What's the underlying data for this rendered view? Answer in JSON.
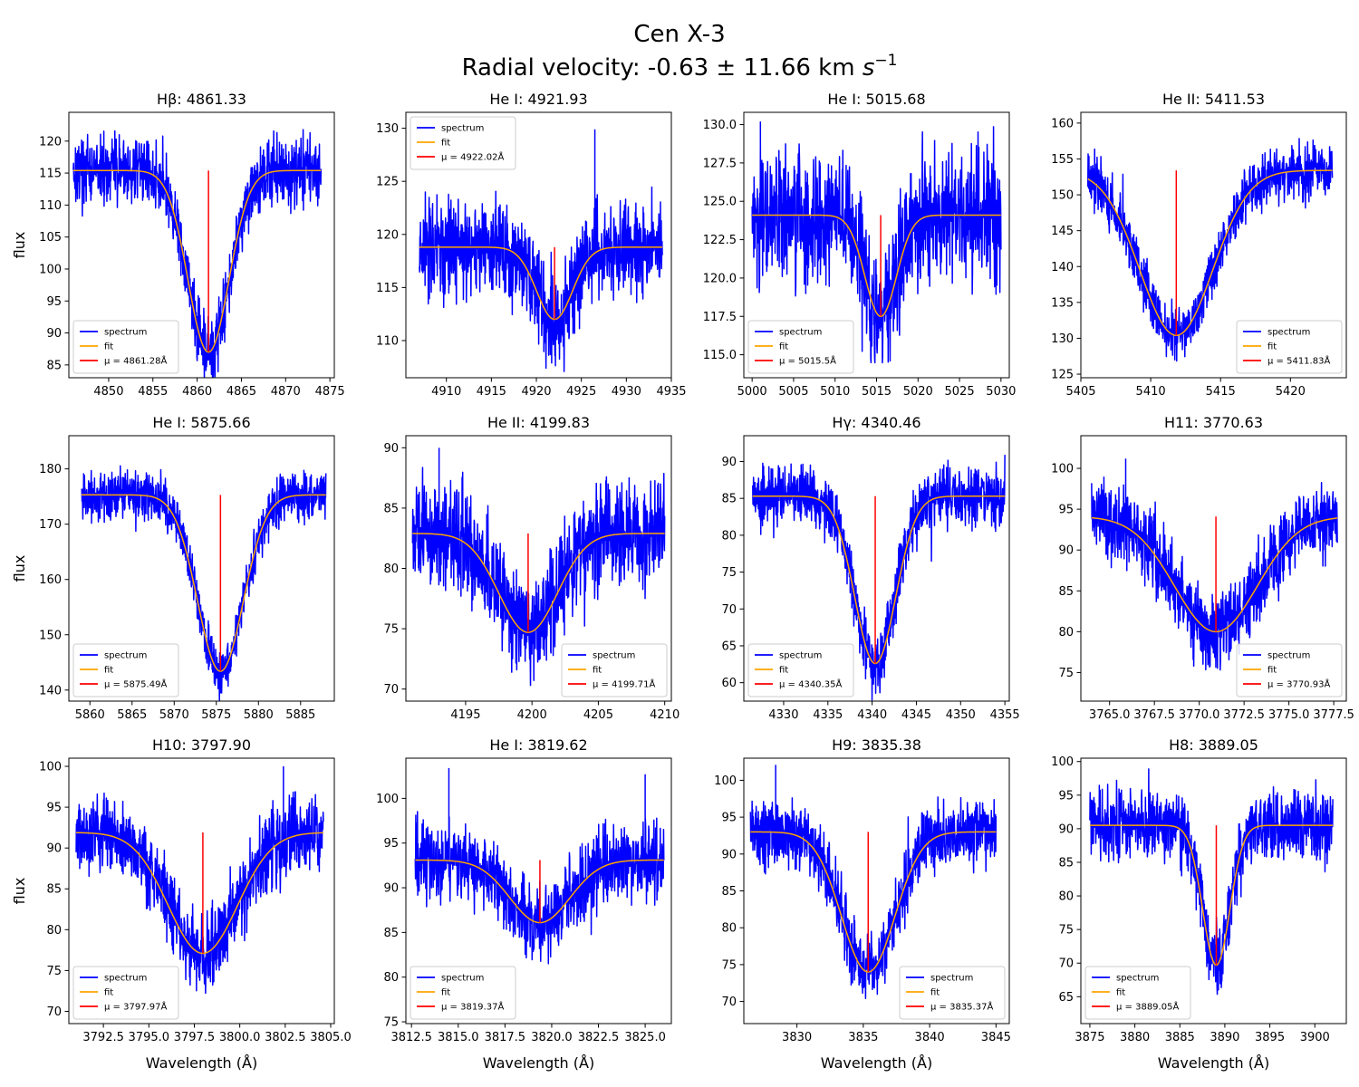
{
  "figure": {
    "title_line1": "Cen X-3",
    "title_line2_prefix": "Radial velocity: -0.63 ± 11.66 km ",
    "title_line2_unit": "s",
    "title_line2_exp": "−1"
  },
  "legend_labels": {
    "spectrum": "spectrum",
    "fit": "fit"
  },
  "colors": {
    "spectrum": "#0000ff",
    "fit": "#ffa500",
    "mu": "#ff0000"
  },
  "axis_labels": {
    "ylabel": "flux",
    "xlabel": "Wavelength (Å)"
  },
  "chart_data": [
    {
      "type": "line",
      "title": "Hβ: 4861.33",
      "mu_label": "μ = 4861.28Å",
      "xlim": [
        4845.5,
        4875.5
      ],
      "ylim": [
        83,
        124.5
      ],
      "xticks": [
        4845,
        4850,
        4855,
        4860,
        4865,
        4870,
        4875
      ],
      "yticks": [
        85,
        90,
        95,
        100,
        105,
        110,
        115,
        120
      ],
      "data_x": [
        4846,
        4874
      ],
      "fit": {
        "base": 115.4,
        "depth": 28.4,
        "mu": 4861.28,
        "sigma": 2.3
      },
      "mu_line": [
        87.0,
        115.4
      ],
      "noise": 2.6,
      "spikes": [],
      "legend": "lower-left"
    },
    {
      "type": "line",
      "title": "He I: 4921.93",
      "mu_label": "μ = 4922.02Å",
      "xlim": [
        4905.5,
        4935
      ],
      "ylim": [
        106.5,
        131.5
      ],
      "xticks": [
        4910,
        4915,
        4920,
        4925,
        4930,
        4935
      ],
      "yticks": [
        110,
        115,
        120,
        125,
        130
      ],
      "data_x": [
        4907,
        4934
      ],
      "fit": {
        "base": 118.8,
        "depth": 6.8,
        "mu": 4922.02,
        "sigma": 2.0
      },
      "mu_line": [
        112.0,
        118.8
      ],
      "noise": 2.2,
      "spikes": [
        [
          4926.5,
          129.9
        ]
      ],
      "legend": "upper-left"
    },
    {
      "type": "line",
      "title": "He I: 5015.68",
      "mu_label": "μ = 5015.5Å",
      "xlim": [
        4999,
        5031
      ],
      "ylim": [
        113.5,
        130.8
      ],
      "xticks": [
        5000,
        5005,
        5010,
        5015,
        5020,
        5025,
        5030
      ],
      "yticks": [
        115.0,
        117.5,
        120.0,
        122.5,
        125.0,
        127.5,
        130.0
      ],
      "data_x": [
        5000,
        5030
      ],
      "fit": {
        "base": 124.1,
        "depth": 6.6,
        "mu": 5015.5,
        "sigma": 1.9
      },
      "mu_line": [
        117.5,
        124.1
      ],
      "noise": 2.1,
      "spikes": [
        [
          5001.0,
          130.2
        ]
      ],
      "legend": "lower-left"
    },
    {
      "type": "line",
      "title": "He II: 5411.53",
      "mu_label": "μ = 5411.83Å",
      "xlim": [
        5405,
        5424
      ],
      "ylim": [
        124.5,
        161.5
      ],
      "xticks": [
        5405,
        5410,
        5415,
        5420
      ],
      "yticks": [
        125,
        130,
        135,
        140,
        145,
        150,
        155,
        160
      ],
      "data_x": [
        5405.5,
        5423
      ],
      "fit": {
        "base": 153.4,
        "depth": 23.0,
        "mu": 5411.83,
        "sigma": 2.6
      },
      "mu_line": [
        130.4,
        153.4
      ],
      "noise": 1.8,
      "spikes": [],
      "legend": "lower-right"
    },
    {
      "type": "line",
      "title": "He I: 5875.66",
      "mu_label": "μ = 5875.49Å",
      "xlim": [
        5857.5,
        5889
      ],
      "ylim": [
        138,
        186
      ],
      "xticks": [
        5860,
        5865,
        5870,
        5875,
        5880,
        5885
      ],
      "yticks": [
        140,
        150,
        160,
        170,
        180
      ],
      "data_x": [
        5859,
        5888
      ],
      "fit": {
        "base": 175.3,
        "depth": 31.9,
        "mu": 5875.49,
        "sigma": 2.7
      },
      "mu_line": [
        143.4,
        175.3
      ],
      "noise": 2.2,
      "spikes": [],
      "legend": "lower-left"
    },
    {
      "type": "line",
      "title": "He II: 4199.83",
      "mu_label": "μ = 4199.71Å",
      "xlim": [
        4190.5,
        4210.5
      ],
      "ylim": [
        69,
        91
      ],
      "xticks": [
        4195,
        4200,
        4205,
        4210
      ],
      "yticks": [
        70,
        75,
        80,
        85,
        90
      ],
      "data_x": [
        4191,
        4210
      ],
      "fit": {
        "base": 82.9,
        "depth": 8.2,
        "mu": 4199.71,
        "sigma": 2.2
      },
      "mu_line": [
        74.7,
        82.9
      ],
      "noise": 2.1,
      "spikes": [
        [
          4193.0,
          90.0
        ]
      ],
      "legend": "lower-right"
    },
    {
      "type": "line",
      "title": "Hγ: 4340.46",
      "mu_label": "μ = 4340.35Å",
      "xlim": [
        4325.5,
        4355.5
      ],
      "ylim": [
        57.5,
        93.5
      ],
      "xticks": [
        4325,
        4330,
        4335,
        4340,
        4345,
        4350,
        4355
      ],
      "yticks": [
        60,
        65,
        70,
        75,
        80,
        85,
        90
      ],
      "data_x": [
        4326.5,
        4355
      ],
      "fit": {
        "base": 85.3,
        "depth": 22.7,
        "mu": 4340.35,
        "sigma": 2.3
      },
      "mu_line": [
        62.6,
        85.3
      ],
      "noise": 2.0,
      "spikes": [],
      "legend": "lower-left"
    },
    {
      "type": "line",
      "title": "H11: 3770.63",
      "mu_label": "μ = 3770.93Å",
      "xlim": [
        3763.4,
        3778.2
      ],
      "ylim": [
        71.5,
        104
      ],
      "xticks": [
        3765.0,
        3767.5,
        3770.0,
        3772.5,
        3775.0,
        3777.5
      ],
      "yticks": [
        75,
        80,
        85,
        90,
        95,
        100
      ],
      "data_x": [
        3764,
        3777.7
      ],
      "fit": {
        "base": 94.1,
        "depth": 14.1,
        "mu": 3770.93,
        "sigma": 2.3
      },
      "mu_line": [
        80.0,
        94.1
      ],
      "noise": 2.3,
      "spikes": [
        [
          3765.9,
          101.2
        ]
      ],
      "legend": "lower-right"
    },
    {
      "type": "line",
      "title": "H10: 3797.90",
      "mu_label": "μ = 3797.97Å",
      "xlim": [
        3790.6,
        3805.2
      ],
      "ylim": [
        68.5,
        101
      ],
      "xticks": [
        3792.5,
        3795.0,
        3797.5,
        3800.0,
        3802.5,
        3805.0
      ],
      "yticks": [
        70,
        75,
        80,
        85,
        90,
        95,
        100
      ],
      "data_x": [
        3791,
        3804.6
      ],
      "fit": {
        "base": 91.9,
        "depth": 14.8,
        "mu": 3797.97,
        "sigma": 1.9
      },
      "mu_line": [
        77.1,
        91.9
      ],
      "noise": 2.3,
      "spikes": [
        [
          3802.4,
          100.0
        ]
      ],
      "legend": "lower-left"
    },
    {
      "type": "line",
      "title": "He I: 3819.62",
      "mu_label": "μ = 3819.37Å",
      "xlim": [
        3812.2,
        3826.4
      ],
      "ylim": [
        74.8,
        104.5
      ],
      "xticks": [
        3812.5,
        3815.0,
        3817.5,
        3820.0,
        3822.5,
        3825.0
      ],
      "yticks": [
        75,
        80,
        85,
        90,
        95,
        100
      ],
      "data_x": [
        3812.7,
        3826
      ],
      "fit": {
        "base": 93.1,
        "depth": 7.0,
        "mu": 3819.37,
        "sigma": 1.6
      },
      "mu_line": [
        86.1,
        93.1
      ],
      "noise": 2.0,
      "spikes": [
        [
          3814.5,
          103.4
        ],
        [
          3825.0,
          102.7
        ]
      ],
      "legend": "lower-left"
    },
    {
      "type": "line",
      "title": "H9: 3835.38",
      "mu_label": "μ = 3835.37Å",
      "xlim": [
        3826,
        3846
      ],
      "ylim": [
        67,
        103
      ],
      "xticks": [
        3830,
        3835,
        3840,
        3845
      ],
      "yticks": [
        70,
        75,
        80,
        85,
        90,
        95,
        100
      ],
      "data_x": [
        3826.5,
        3845
      ],
      "fit": {
        "base": 93.0,
        "depth": 19.0,
        "mu": 3835.37,
        "sigma": 2.0
      },
      "mu_line": [
        74.0,
        93.0
      ],
      "noise": 2.3,
      "spikes": [
        [
          3828.4,
          102.1
        ]
      ],
      "legend": "lower-right"
    },
    {
      "type": "line",
      "title": "H8: 3889.05",
      "mu_label": "μ = 3889.05Å",
      "xlim": [
        3874,
        3903.5
      ],
      "ylim": [
        61,
        100.5
      ],
      "xticks": [
        3875,
        3880,
        3885,
        3890,
        3895,
        3900
      ],
      "yticks": [
        65,
        70,
        75,
        80,
        85,
        90,
        95,
        100
      ],
      "data_x": [
        3875,
        3902
      ],
      "fit": {
        "base": 90.5,
        "depth": 20.8,
        "mu": 3889.05,
        "sigma": 1.5
      },
      "mu_line": [
        69.7,
        90.5
      ],
      "noise": 2.5,
      "spikes": [],
      "legend": "lower-left"
    }
  ]
}
